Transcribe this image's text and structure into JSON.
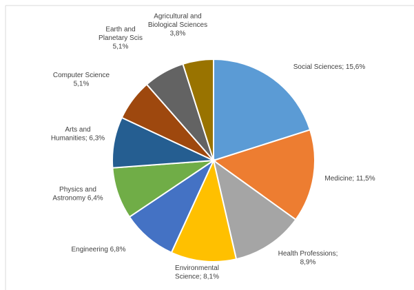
{
  "chart_data": {
    "type": "pie",
    "legend": "none",
    "slices": [
      {
        "label": "Social Sciences",
        "value": "15,6%",
        "color": "#5b9bd5"
      },
      {
        "label": "Medicine",
        "value": "11,5%",
        "color": "#ed7d31"
      },
      {
        "label": "Health Professions",
        "value": "8,9%",
        "color": "#a5a5a5"
      },
      {
        "label": "Environmental Science",
        "value": "8,1%",
        "color": "#ffc000"
      },
      {
        "label": "Engineering",
        "value": "6,8%",
        "color": "#4472c4"
      },
      {
        "label": "Physics and Astronomy",
        "value": "6,4%",
        "color": "#70ad47"
      },
      {
        "label": "Arts and Humanities",
        "value": "6,3%",
        "color": "#255e91"
      },
      {
        "label": "Computer Science",
        "value": "5,1%",
        "color": "#9e480e"
      },
      {
        "label": "Earth and Planetary Scis",
        "value": "5,1%",
        "color": "#636363"
      },
      {
        "label": "Agricultural and Biological Sciences",
        "value": "3,8%",
        "color": "#997300"
      }
    ]
  },
  "label_lines": [
    [
      "Social Sciences; 15,6%"
    ],
    [
      "Medicine; 11,5%"
    ],
    [
      "Health Professions;",
      "8,9%"
    ],
    [
      "Environmental",
      "Science; 8,1%"
    ],
    [
      "Engineering 6,8%"
    ],
    [
      "Physics and",
      "Astronomy 6,4%"
    ],
    [
      "Arts and",
      "Humanities; 6,3%"
    ],
    [
      "Computer Science",
      "5,1%"
    ],
    [
      "Earth and",
      "Planetary Scis",
      "5,1%"
    ],
    [
      "Agricultural and",
      "Biological Sciences",
      "3,8%"
    ]
  ]
}
